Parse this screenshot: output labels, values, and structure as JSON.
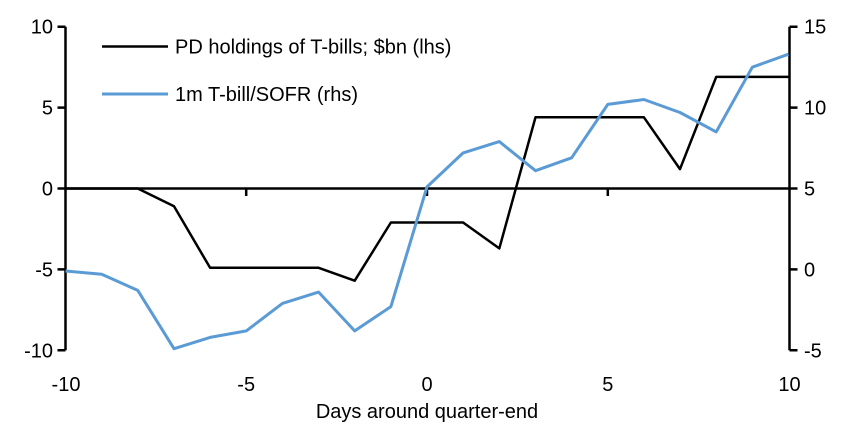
{
  "figure": {
    "background": "#ffffff",
    "text_color": "#000000"
  },
  "chart_data": {
    "type": "line",
    "title": "",
    "xlabel": "Days around quarter-end",
    "grid": false,
    "x": [
      -10,
      -9,
      -8,
      -7,
      -6,
      -5,
      -4,
      -3,
      -2,
      -1,
      0,
      1,
      2,
      3,
      4,
      5,
      6,
      7,
      8,
      9,
      10
    ],
    "series": [
      {
        "name": "PD holdings of T-bills; $bn (lhs)",
        "axis": "left",
        "color": "#000000",
        "values": [
          0,
          0,
          0,
          -1.1,
          -4.9,
          -4.9,
          -4.9,
          -4.9,
          -5.7,
          -2.1,
          -2.1,
          -2.1,
          -3.7,
          4.4,
          4.4,
          4.4,
          4.4,
          1.2,
          6.9,
          6.9,
          6.9
        ]
      },
      {
        "name": "1m T-bill/SOFR (rhs)",
        "axis": "right",
        "color": "#5b9bd5",
        "values": [
          -0.1,
          -0.3,
          -1.3,
          -4.9,
          -4.2,
          -3.8,
          -2.1,
          -1.4,
          -3.8,
          -2.3,
          5.1,
          7.2,
          7.9,
          6.1,
          6.9,
          10.2,
          10.5,
          9.7,
          8.5,
          12.5,
          13.3
        ]
      }
    ],
    "left_axis": {
      "range": [
        -10,
        10
      ],
      "ticks": [
        "10",
        "5",
        "0",
        "-5",
        "-10"
      ]
    },
    "right_axis": {
      "range": [
        -5,
        15
      ],
      "ticks": [
        "15",
        "10",
        "5",
        "0",
        "-5"
      ]
    },
    "x_axis": {
      "range": [
        -10,
        10
      ],
      "ticks": [
        "-10",
        "-5",
        "0",
        "5",
        "10"
      ]
    },
    "legend": {
      "position": "top-left",
      "entries": [
        "PD holdings of T-bills; $bn (lhs)",
        "1m T-bill/SOFR (rhs)"
      ]
    }
  }
}
